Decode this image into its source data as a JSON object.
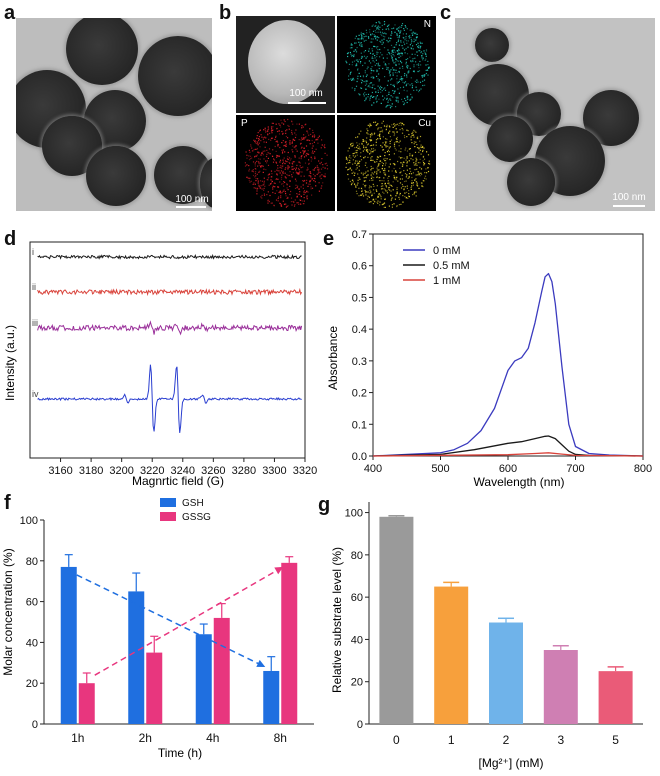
{
  "panels": {
    "a": {
      "label": "a",
      "scalebar": "100 nm"
    },
    "b": {
      "label": "b",
      "scalebar": "100 nm",
      "tiles": [
        {
          "name": "N",
          "color": "#22c8b8"
        },
        {
          "name": "P",
          "color": "#e0202a"
        },
        {
          "name": "Cu",
          "color": "#e6d230"
        }
      ]
    },
    "c": {
      "label": "c",
      "scalebar": "100 nm"
    },
    "d": {
      "label": "d",
      "xlabel": "Magnrtic field (G)",
      "ylabel": "Intensity (a.u.)",
      "traces": [
        {
          "name": "i",
          "color": "#1a1a1a"
        },
        {
          "name": "ii",
          "color": "#d9433b"
        },
        {
          "name": "iii",
          "color": "#9a2f9a"
        },
        {
          "name": "iv",
          "color": "#2b3fd0"
        }
      ]
    },
    "e": {
      "label": "e",
      "xlabel": "Wavelength (nm)",
      "ylabel": "Absorbance"
    },
    "f": {
      "label": "f",
      "xlabel": "Time (h)",
      "ylabel": "Molar concentration (%)"
    },
    "g": {
      "label": "g",
      "xlabel": "[Mg²⁺] (mM)",
      "ylabel": "Relative substrate level (%)"
    }
  },
  "chart_data": [
    {
      "id": "d",
      "type": "line",
      "x_ticks": [
        3160,
        3180,
        3200,
        3220,
        3240,
        3260,
        3280,
        3300,
        3320
      ],
      "xlim": [
        3140,
        3320
      ],
      "series": [
        {
          "name": "i",
          "description": "flat noisy baseline"
        },
        {
          "name": "ii",
          "description": "flat noisy baseline"
        },
        {
          "name": "iii",
          "description": "weak quartet signal"
        },
        {
          "name": "iv",
          "description": "1:2:2:1 quartet",
          "peaks_G": [
            3203,
            3220,
            3237,
            3254
          ]
        }
      ]
    },
    {
      "id": "e",
      "type": "line",
      "xlim": [
        400,
        800
      ],
      "ylim": [
        0,
        0.7
      ],
      "x_ticks": [
        400,
        500,
        600,
        700,
        800
      ],
      "y_ticks": [
        0.0,
        0.1,
        0.2,
        0.3,
        0.4,
        0.5,
        0.6,
        0.7
      ],
      "legend_position": "top-left",
      "series": [
        {
          "name": "0  mM",
          "color": "#3b3bbf",
          "x": [
            400,
            450,
            500,
            520,
            540,
            560,
            580,
            600,
            610,
            620,
            630,
            640,
            650,
            655,
            660,
            665,
            670,
            680,
            690,
            700,
            720,
            750,
            800
          ],
          "y": [
            0.0,
            0.005,
            0.01,
            0.02,
            0.04,
            0.08,
            0.15,
            0.27,
            0.3,
            0.31,
            0.34,
            0.42,
            0.52,
            0.565,
            0.575,
            0.55,
            0.48,
            0.28,
            0.1,
            0.03,
            0.008,
            0.003,
            0.0
          ]
        },
        {
          "name": "0.5 mM",
          "color": "#1a1a1a",
          "x": [
            400,
            500,
            550,
            600,
            620,
            640,
            655,
            660,
            670,
            680,
            690,
            700,
            720,
            800
          ],
          "y": [
            0.0,
            0.005,
            0.02,
            0.04,
            0.045,
            0.055,
            0.062,
            0.063,
            0.055,
            0.035,
            0.015,
            0.005,
            0.002,
            0.0
          ]
        },
        {
          "name": "1  mM",
          "color": "#d9433b",
          "x": [
            400,
            600,
            640,
            660,
            680,
            700,
            800
          ],
          "y": [
            0.0,
            0.004,
            0.008,
            0.01,
            0.006,
            0.002,
            0.0
          ]
        }
      ]
    },
    {
      "id": "f",
      "type": "bar",
      "categories": [
        "1h",
        "2h",
        "4h",
        "8h"
      ],
      "ylim": [
        0,
        100
      ],
      "y_ticks": [
        0,
        20,
        40,
        60,
        80,
        100
      ],
      "legend_position": "top-center",
      "series": [
        {
          "name": "GSH",
          "color": "#1f6fe0",
          "values": [
            77,
            65,
            44,
            26
          ],
          "errors": [
            6,
            9,
            5,
            7
          ]
        },
        {
          "name": "GSSG",
          "color": "#e8367e",
          "values": [
            20,
            35,
            52,
            79
          ],
          "errors": [
            5,
            8,
            7,
            3
          ]
        }
      ]
    },
    {
      "id": "g",
      "type": "bar",
      "categories": [
        "0",
        "1",
        "2",
        "3",
        "5"
      ],
      "values": [
        98,
        65,
        48,
        35,
        25
      ],
      "errors": [
        0.5,
        2,
        2,
        2,
        2
      ],
      "colors": [
        "#9a9a9a",
        "#f7a03c",
        "#6fb3ea",
        "#cf7fb3",
        "#ea5b78"
      ],
      "ylim": [
        0,
        105
      ],
      "y_ticks": [
        0,
        20,
        40,
        60,
        80,
        100
      ]
    }
  ]
}
